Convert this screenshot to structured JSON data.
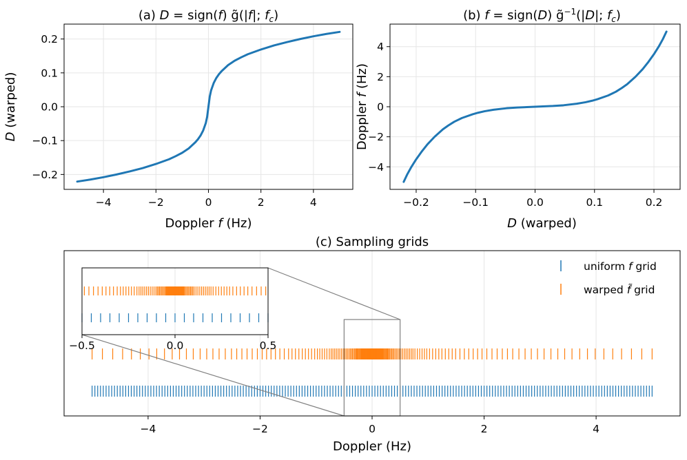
{
  "colors": {
    "blue": "#1f77b4",
    "orange": "#ff7f0e",
    "grid": "#e6e6e6",
    "inset_frame": "#808080"
  },
  "chart_data": [
    {
      "panel": "a",
      "type": "line",
      "title": "(a) D = sign(f) g̃(|f|; fc)",
      "title_parts": {
        "prefix": "(a) ",
        "lhs": "D",
        "eq": " = sign(",
        "arg": "f",
        "rest": ") g̃(|",
        "arg2": "f",
        "rest2": "|; ",
        "fc": "f",
        "sub": "c",
        "close": ")"
      },
      "xlabel": "Doppler f (Hz)",
      "xlabel_parts": {
        "pre": "Doppler ",
        "var": "f",
        "post": " (Hz)"
      },
      "ylabel": "D (warped)",
      "ylabel_parts": {
        "var": "D",
        "post": " (warped)"
      },
      "xlim": [
        -5.5,
        5.5
      ],
      "ylim": [
        -0.244,
        0.244
      ],
      "xticks": [
        -4,
        -2,
        0,
        2,
        4
      ],
      "xtick_labels": [
        "−4",
        "−2",
        "0",
        "2",
        "4"
      ],
      "yticks": [
        -0.2,
        -0.1,
        0.0,
        0.1,
        0.2
      ],
      "ytick_labels": [
        "−0.2",
        "−0.1",
        "0.0",
        "0.1",
        "0.2"
      ],
      "grid": true,
      "series": [
        {
          "color": "#1f77b4",
          "x": [
            -5,
            -4.5,
            -4,
            -3.5,
            -3,
            -2.5,
            -2,
            -1.5,
            -1.25,
            -1,
            -0.75,
            -0.5,
            -0.4,
            -0.3,
            -0.2,
            -0.1,
            -0.05,
            0,
            0.05,
            0.1,
            0.2,
            0.3,
            0.4,
            0.5,
            0.75,
            1,
            1.25,
            1.5,
            2,
            2.5,
            3,
            3.5,
            4,
            4.5,
            5
          ],
          "y": [
            -0.221,
            -0.215,
            -0.208,
            -0.2,
            -0.191,
            -0.181,
            -0.169,
            -0.155,
            -0.146,
            -0.136,
            -0.123,
            -0.105,
            -0.096,
            -0.085,
            -0.07,
            -0.048,
            -0.03,
            0,
            0.03,
            0.048,
            0.07,
            0.085,
            0.096,
            0.105,
            0.123,
            0.136,
            0.146,
            0.155,
            0.169,
            0.181,
            0.191,
            0.2,
            0.208,
            0.215,
            0.221
          ]
        }
      ]
    },
    {
      "panel": "b",
      "type": "line",
      "title": "(b) f = sign(D) g̃⁻¹(|D|; fc)",
      "title_parts": {
        "prefix": "(b) ",
        "lhs": "f",
        "eq": " = sign(",
        "arg": "D",
        "rest": ") g̃",
        "sup": "−1",
        "rest2": "(|",
        "arg2": "D",
        "rest3": "|; ",
        "fc": "f",
        "sub": "c",
        "close": ")"
      },
      "xlabel": "D (warped)",
      "xlabel_parts": {
        "var": "D",
        "post": " (warped)"
      },
      "ylabel": "Doppler f (Hz)",
      "ylabel_parts": {
        "pre": "Doppler ",
        "var": "f",
        "post": " (Hz)"
      },
      "xlim": [
        -0.244,
        0.244
      ],
      "ylim": [
        -5.5,
        5.5
      ],
      "xticks": [
        -0.2,
        -0.1,
        0.0,
        0.1,
        0.2
      ],
      "xtick_labels": [
        "−0.2",
        "−0.1",
        "0.0",
        "0.1",
        "0.2"
      ],
      "yticks": [
        -4,
        -2,
        0,
        2,
        4
      ],
      "ytick_labels": [
        "−4",
        "−2",
        "0",
        "2",
        "4"
      ],
      "grid": true,
      "series": [
        {
          "color": "#1f77b4",
          "x": [
            -0.221,
            -0.215,
            -0.208,
            -0.2,
            -0.191,
            -0.181,
            -0.169,
            -0.155,
            -0.146,
            -0.136,
            -0.123,
            -0.105,
            -0.096,
            -0.085,
            -0.07,
            -0.048,
            -0.03,
            0,
            0.03,
            0.048,
            0.07,
            0.085,
            0.096,
            0.105,
            0.123,
            0.136,
            0.146,
            0.155,
            0.169,
            0.181,
            0.191,
            0.2,
            0.208,
            0.215,
            0.221
          ],
          "y": [
            -5,
            -4.5,
            -4,
            -3.5,
            -3,
            -2.5,
            -2,
            -1.5,
            -1.25,
            -1,
            -0.75,
            -0.5,
            -0.4,
            -0.3,
            -0.2,
            -0.1,
            -0.05,
            0,
            0.05,
            0.1,
            0.2,
            0.3,
            0.4,
            0.5,
            0.75,
            1,
            1.25,
            1.5,
            2,
            2.5,
            3,
            3.5,
            4,
            4.5,
            5
          ]
        }
      ]
    },
    {
      "panel": "c",
      "type": "scatter",
      "marker": "vertical-tick",
      "title": "(c) Sampling grids",
      "xlabel": "Doppler (Hz)",
      "xlim": [
        -5.5,
        5.5
      ],
      "xticks": [
        -4,
        -2,
        0,
        2,
        4
      ],
      "xtick_labels": [
        "−4",
        "−2",
        "0",
        "2",
        "4"
      ],
      "grid": true,
      "legend_position": "upper-right",
      "series": [
        {
          "name": "uniform f grid",
          "name_parts": {
            "pre": "uniform ",
            "var": "f",
            "post": " grid"
          },
          "color": "#1f77b4",
          "row_y": 0,
          "x_range": [
            -5,
            5
          ],
          "count": 201,
          "spacing": 0.05
        },
        {
          "name": "warped f̃ grid",
          "name_parts": {
            "pre": "warped ",
            "var": "f̃",
            "post": " grid"
          },
          "color": "#ff7f0e",
          "row_y": 1,
          "count": 201,
          "rule": "x = inverse warp of 201 uniformly spaced D values between -0.221 and 0.221 (panel b curve)"
        }
      ],
      "inset": {
        "xlim": [
          -0.5,
          0.5
        ],
        "xticks": [
          -0.5,
          0.0,
          0.5
        ],
        "xtick_labels": [
          "−0.5",
          "0.0",
          "0.5"
        ],
        "zoom_box_xlim": [
          -0.5,
          0.5
        ]
      }
    }
  ]
}
